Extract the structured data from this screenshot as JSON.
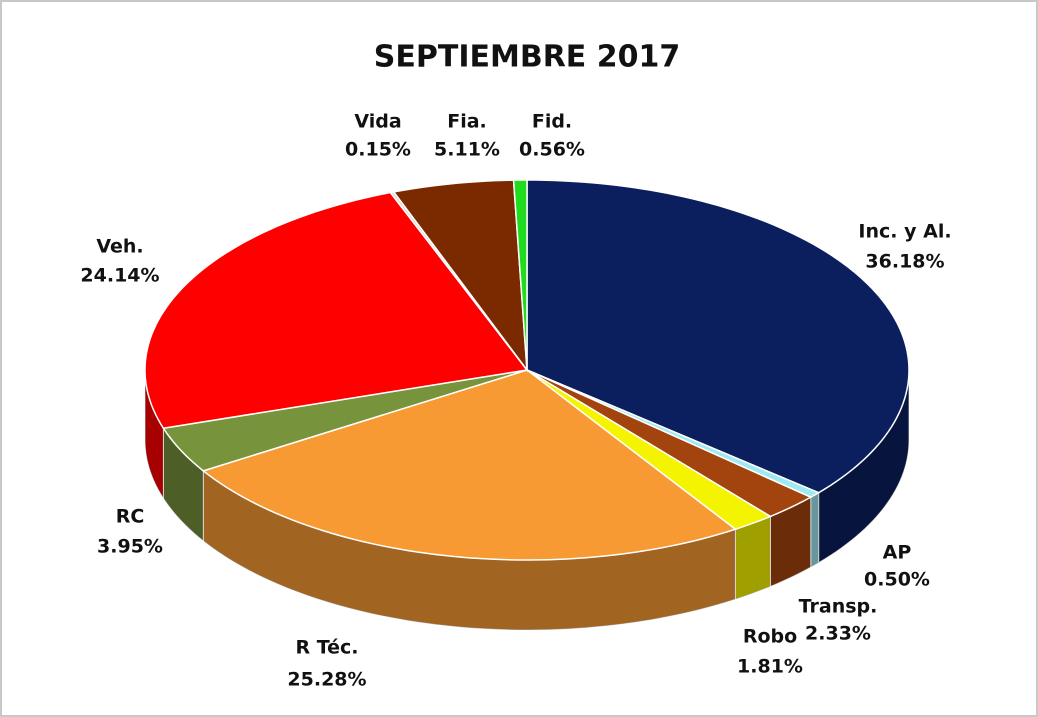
{
  "chart_data": {
    "type": "pie",
    "title": "SEPTIEMBRE 2017",
    "categories": [
      "Inc. y Al.",
      "AP",
      "Transp.",
      "Robo",
      "R Téc.",
      "RC",
      "Veh.",
      "Vida",
      "Fia.",
      "Fid."
    ],
    "values": [
      36.18,
      0.5,
      2.33,
      1.81,
      25.28,
      3.95,
      24.14,
      0.15,
      5.11,
      0.56
    ],
    "value_labels": [
      "36.18%",
      "0.50%",
      "2.33%",
      "1.81%",
      "25.28%",
      "3.95%",
      "24.14%",
      "0.15%",
      "5.11%",
      "0.56%"
    ],
    "colors": [
      "#0b1f5e",
      "#9fe9f2",
      "#a3440f",
      "#f4f400",
      "#f89a33",
      "#77933c",
      "#ff0000",
      "#d9d9d9",
      "#7b2a00",
      "#1fdc1f"
    ]
  }
}
